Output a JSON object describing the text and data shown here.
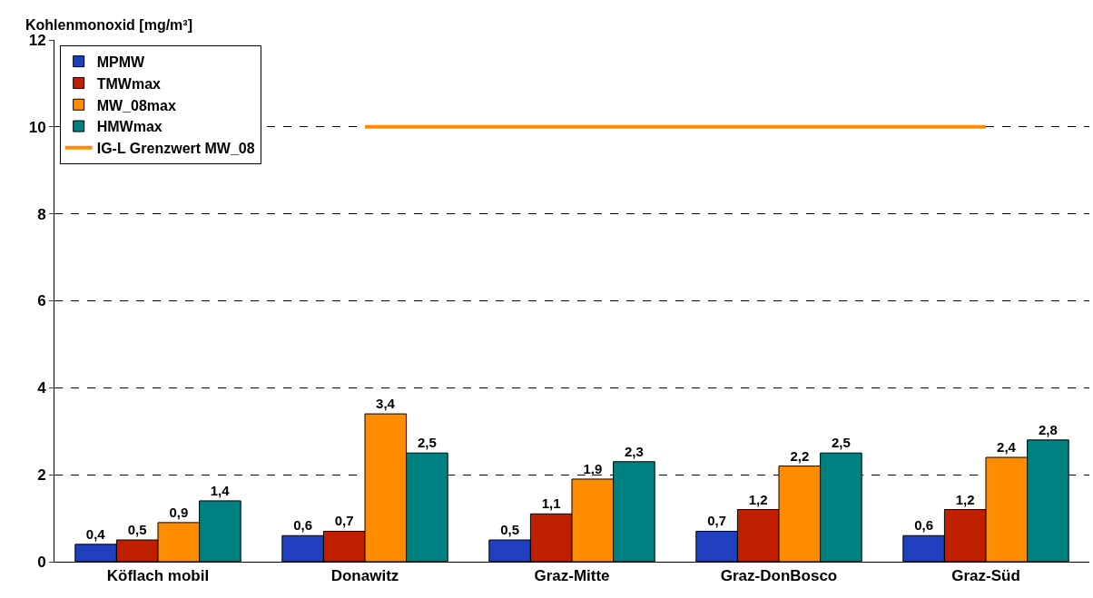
{
  "chart_data": {
    "type": "bar",
    "ylabel": "Kohlenmonoxid [mg/m³]",
    "categories": [
      "Köflach mobil",
      "Donawitz",
      "Graz-Mitte",
      "Graz-DonBosco",
      "Graz-Süd"
    ],
    "series": [
      {
        "name": "MPMW",
        "color": "#1f3fbf",
        "values": [
          0.4,
          0.6,
          0.5,
          0.7,
          0.6
        ],
        "value_labels": [
          "0,4",
          "0,6",
          "0,5",
          "0,7",
          "0,6"
        ]
      },
      {
        "name": "TMWmax",
        "color": "#c02000",
        "values": [
          0.5,
          0.7,
          1.1,
          1.2,
          1.2
        ],
        "value_labels": [
          "0,5",
          "0,7",
          "1,1",
          "1,2",
          "1,2"
        ]
      },
      {
        "name": "MW_08max",
        "color": "#ff8c00",
        "values": [
          0.9,
          3.4,
          1.9,
          2.2,
          2.4
        ],
        "value_labels": [
          "0,9",
          "3,4",
          "1,9",
          "2,2",
          "2,4"
        ]
      },
      {
        "name": "HMWmax",
        "color": "#008080",
        "values": [
          1.4,
          2.5,
          2.3,
          2.5,
          2.8
        ],
        "value_labels": [
          "1,4",
          "2,5",
          "2,3",
          "2,5",
          "2,8"
        ]
      },
      {
        "name": "IG-L Grenzwert MW_08",
        "type": "line",
        "color": "#ff8c00",
        "values": [
          null,
          10,
          10,
          10,
          10
        ]
      }
    ],
    "ylim": [
      0,
      12
    ],
    "yticks": [
      0,
      2,
      4,
      6,
      8,
      10,
      12
    ],
    "grid": "y",
    "legend": "top left",
    "marker": "none",
    "line_style": "solid"
  }
}
